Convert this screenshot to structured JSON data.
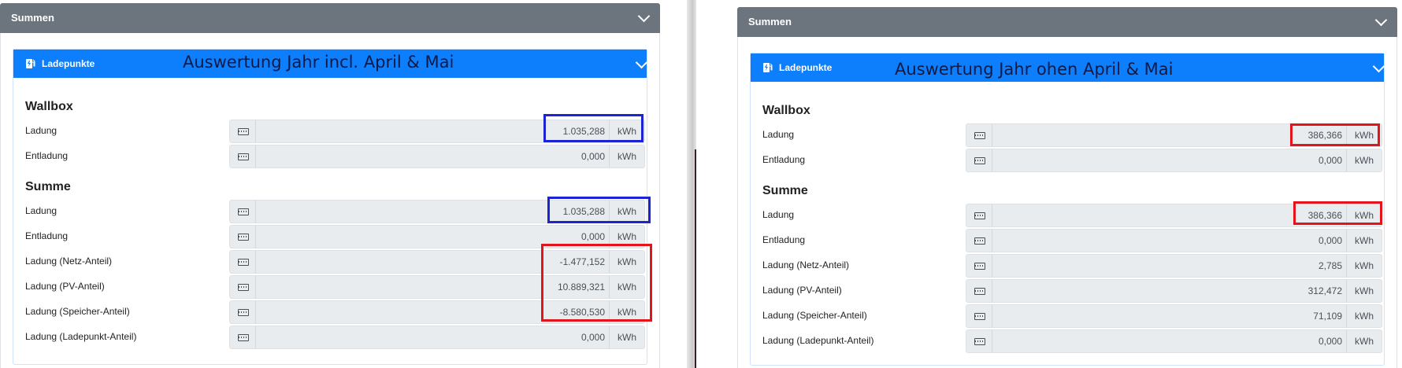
{
  "colors": {
    "summen_header": "#6c757d",
    "ladepunkte_header": "#0d7efc",
    "highlight_blue": "#1a24d2",
    "highlight_red": "#e3141c"
  },
  "left": {
    "summen_title": "Summen",
    "ladepunkte_title": "Ladepunkte",
    "annotation": "Auswertung Jahr incl. April & Mai",
    "wallbox": {
      "title": "Wallbox",
      "ladung": {
        "label": "Ladung",
        "value": "1.035,288",
        "unit": "kWh"
      },
      "entladung": {
        "label": "Entladung",
        "value": "0,000",
        "unit": "kWh"
      }
    },
    "summe": {
      "title": "Summe",
      "ladung": {
        "label": "Ladung",
        "value": "1.035,288",
        "unit": "kWh"
      },
      "entladung": {
        "label": "Entladung",
        "value": "0,000",
        "unit": "kWh"
      },
      "netz": {
        "label": "Ladung (Netz-Anteil)",
        "value": "-1.477,152",
        "unit": "kWh"
      },
      "pv": {
        "label": "Ladung (PV-Anteil)",
        "value": "10.889,321",
        "unit": "kWh"
      },
      "speicher": {
        "label": "Ladung (Speicher-Anteil)",
        "value": "-8.580,530",
        "unit": "kWh"
      },
      "ladepunkt": {
        "label": "Ladung (Ladepunkt-Anteil)",
        "value": "0,000",
        "unit": "kWh"
      }
    }
  },
  "right": {
    "summen_title": "Summen",
    "ladepunkte_title": "Ladepunkte",
    "annotation": "Auswertung Jahr ohen April & Mai",
    "wallbox": {
      "title": "Wallbox",
      "ladung": {
        "label": "Ladung",
        "value": "386,366",
        "unit": "kWh"
      },
      "entladung": {
        "label": "Entladung",
        "value": "0,000",
        "unit": "kWh"
      }
    },
    "summe": {
      "title": "Summe",
      "ladung": {
        "label": "Ladung",
        "value": "386,366",
        "unit": "kWh"
      },
      "entladung": {
        "label": "Entladung",
        "value": "0,000",
        "unit": "kWh"
      },
      "netz": {
        "label": "Ladung (Netz-Anteil)",
        "value": "2,785",
        "unit": "kWh"
      },
      "pv": {
        "label": "Ladung (PV-Anteil)",
        "value": "312,472",
        "unit": "kWh"
      },
      "speicher": {
        "label": "Ladung (Speicher-Anteil)",
        "value": "71,109",
        "unit": "kWh"
      },
      "ladepunkt": {
        "label": "Ladung (Ladepunkt-Anteil)",
        "value": "0,000",
        "unit": "kWh"
      }
    }
  }
}
